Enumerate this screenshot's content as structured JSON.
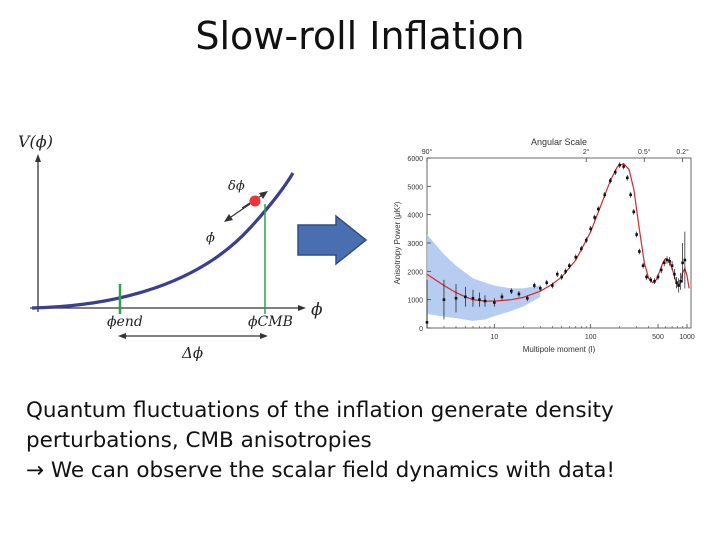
{
  "slide": {
    "title": "Slow-roll Inflation",
    "body_lines": [
      "Quantum fluctuations of the inflation generate density",
      "perturbations, CMB anisotropies",
      "→ We can observe the scalar field dynamics with data!"
    ]
  },
  "potential_plot": {
    "y_axis_label": "V(ϕ)",
    "x_axis_label": "ϕ",
    "phi_end_label": "ϕend",
    "phi_cmb_label": "ϕCMB",
    "delta_phi_label": "Δϕ",
    "fluctuation_label": "δϕ",
    "phidot_label": "ϕ̇",
    "colors": {
      "curve": "#3a3f8f",
      "marker": "#e8363b",
      "guide": "#2ea04a"
    }
  },
  "arrow": {
    "color": "#4a6fb0",
    "icon": "right-arrow-icon"
  },
  "chart_data": {
    "type": "line",
    "title": "Angular Scale",
    "xlabel": "Multipole moment (l)",
    "ylabel": "Anisotropy Power (μK²)",
    "x_scale": "log",
    "top_tick_labels": [
      "90°",
      "2°",
      "0.5°",
      "0.2°"
    ],
    "bottom_tick_labels": [
      "10",
      "100",
      "500",
      "1000"
    ],
    "y_tick_labels": [
      "0",
      "1000",
      "2000",
      "3000",
      "4000",
      "5000",
      "6000"
    ],
    "ylim": [
      0,
      6000
    ],
    "x_ticks": [
      10,
      100,
      500,
      1000
    ],
    "top_ticks_l": [
      2,
      90,
      360,
      900
    ],
    "model_curve": {
      "x": [
        2,
        3,
        4,
        5,
        6,
        8,
        10,
        15,
        20,
        30,
        40,
        50,
        70,
        100,
        130,
        160,
        190,
        220,
        250,
        280,
        320,
        360,
        400,
        440,
        480,
        520,
        560,
        600,
        650,
        700,
        750,
        800,
        850,
        900,
        950,
        1000,
        1050
      ],
      "y": [
        1900,
        1500,
        1250,
        1100,
        1000,
        950,
        950,
        1000,
        1080,
        1300,
        1550,
        1800,
        2400,
        3400,
        4400,
        5200,
        5700,
        5800,
        5600,
        4900,
        3500,
        2300,
        1750,
        1600,
        1700,
        2000,
        2300,
        2450,
        2400,
        2100,
        1750,
        1500,
        1600,
        1950,
        2100,
        1850,
        1400
      ]
    },
    "cosmic_variance_band": {
      "x": [
        2,
        3,
        4,
        6,
        8,
        10,
        15,
        20,
        30
      ],
      "upper": [
        3300,
        2600,
        2200,
        1750,
        1600,
        1500,
        1400,
        1400,
        1500
      ],
      "lower": [
        500,
        400,
        350,
        250,
        300,
        420,
        600,
        760,
        1100
      ]
    },
    "measurements": {
      "x": [
        2,
        3,
        4,
        5,
        6,
        7,
        8,
        10,
        12,
        15,
        18,
        22,
        26,
        30,
        35,
        40,
        45,
        50,
        55,
        60,
        70,
        80,
        90,
        100,
        110,
        120,
        140,
        160,
        180,
        200,
        220,
        240,
        260,
        280,
        300,
        320,
        350,
        380,
        420,
        460,
        500,
        540,
        580,
        620,
        660,
        700,
        740,
        780,
        820,
        860,
        900,
        950
      ],
      "y": [
        200,
        1000,
        1050,
        1100,
        1050,
        1000,
        950,
        900,
        1100,
        1300,
        1200,
        1050,
        1500,
        1400,
        1600,
        1500,
        1900,
        1800,
        2000,
        2200,
        2500,
        2800,
        3100,
        3500,
        3900,
        4200,
        4700,
        5200,
        5500,
        5750,
        5700,
        5300,
        4700,
        4100,
        3300,
        2700,
        2200,
        1800,
        1700,
        1650,
        1800,
        2050,
        2300,
        2400,
        2350,
        2200,
        1900,
        1600,
        1500,
        1650,
        2300,
        2400
      ],
      "err": [
        1500,
        700,
        500,
        350,
        300,
        250,
        200,
        150,
        120,
        100,
        100,
        100,
        100,
        100,
        100,
        100,
        100,
        100,
        100,
        100,
        100,
        100,
        100,
        100,
        100,
        100,
        100,
        100,
        100,
        100,
        100,
        100,
        100,
        100,
        100,
        100,
        100,
        100,
        100,
        100,
        100,
        120,
        120,
        130,
        150,
        160,
        180,
        200,
        250,
        300,
        700,
        1000
      ]
    },
    "colors": {
      "curve": "#d8262f",
      "band": "#a9c3ee",
      "points": "#111111",
      "axes": "#444444"
    }
  }
}
